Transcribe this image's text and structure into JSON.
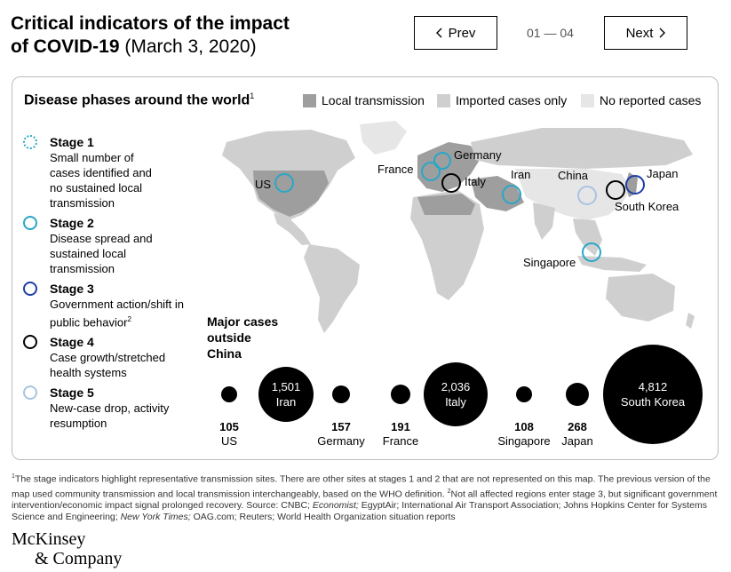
{
  "header": {
    "title_strong_1": "Critical indicators of the impact",
    "title_strong_2": "of COVID-19",
    "title_date": " (March 3, 2020)",
    "prev_label": "Prev",
    "next_label": "Next",
    "pager": "01 — 04"
  },
  "map": {
    "title": "Disease phases around the world",
    "title_note": "1",
    "legend": [
      {
        "label": "Local transmission",
        "color": "#9e9e9e"
      },
      {
        "label": "Imported cases only",
        "color": "#cfcfcf"
      },
      {
        "label": "No reported cases",
        "color": "#e6e6e6"
      }
    ],
    "labels": {
      "us": "US",
      "france": "France",
      "germany": "Germany",
      "italy": "Italy",
      "iran": "Iran",
      "china": "China",
      "japan": "Japan",
      "south_korea": "South Korea",
      "singapore": "Singapore"
    }
  },
  "stages": [
    {
      "name": "Stage 1",
      "desc": "Small number of cases identified and no sustained local transmission",
      "color": "#29a7c6",
      "style": "dotted"
    },
    {
      "name": "Stage 2",
      "desc": "Disease spread and sustained local transmission",
      "color": "#29a7c6",
      "style": "solid"
    },
    {
      "name": "Stage 3",
      "desc": "Government action/shift in public behavior",
      "note": "2",
      "color": "#1f3ea8",
      "style": "solid"
    },
    {
      "name": "Stage 4",
      "desc": "Case growth/stretched health systems",
      "color": "#000000",
      "style": "solid"
    },
    {
      "name": "Stage 5",
      "desc": "New-case drop, activity resumption",
      "color": "#a9c4e0",
      "style": "solid"
    }
  ],
  "cases": {
    "title_1": "Major cases",
    "title_2": "outside",
    "title_3": "China",
    "items": [
      {
        "country": "US",
        "count": "105",
        "value": 105
      },
      {
        "country": "Iran",
        "count": "1,501",
        "value": 1501
      },
      {
        "country": "Germany",
        "count": "157",
        "value": 157
      },
      {
        "country": "France",
        "count": "191",
        "value": 191
      },
      {
        "country": "Italy",
        "count": "2,036",
        "value": 2036
      },
      {
        "country": "Singapore",
        "count": "108",
        "value": 108
      },
      {
        "country": "Japan",
        "count": "268",
        "value": 268
      },
      {
        "country": "South Korea",
        "count": "4,812",
        "value": 4812
      }
    ]
  },
  "footnote": {
    "s1": "The stage indicators highlight representative transmission sites. There are other sites at stages 1 and 2 that are not represented on this map. The previous version of the map used community transmission and local transmission interchangeably, based on the WHO definition. ",
    "s2": "Not all affected regions enter stage 3, but significant government intervention/economic impact signal prolonged recovery. Source: CNBC; ",
    "economist": "Economist;",
    "s3": " EgyptAir; International Air Transport Association; Johns Hopkins Center for Systems Science and Engineering; ",
    "nyt": "New York Times;",
    "s4": " OAG.com; Reuters; World Health Organization situation reports"
  },
  "logo": {
    "line1": "McKinsey",
    "line2": "& Company"
  }
}
